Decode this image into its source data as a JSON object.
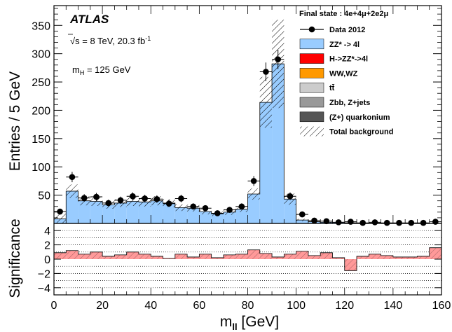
{
  "chart_data": [
    {
      "type": "stacked-histogram",
      "experiment": "ATLAS",
      "energy_lumi": "√s = 8 TeV, 20.3 fb",
      "energy_lumi_sup": "-1",
      "mass_label": "m",
      "mass_label_sub": "H",
      "mass_value": " = 125 GeV",
      "legend_title": "Final state : 4e+4μ+2e2μ",
      "ylabel": "Entries / 5 GeV",
      "xlim": [
        0,
        160
      ],
      "ylim": [
        0,
        385
      ],
      "yticks": [
        50,
        100,
        150,
        200,
        250,
        300,
        350
      ],
      "bin_edges": [
        0,
        5,
        10,
        15,
        20,
        25,
        30,
        35,
        40,
        45,
        50,
        55,
        60,
        65,
        70,
        75,
        80,
        85,
        90,
        95,
        100,
        105,
        110,
        115,
        120,
        125,
        130,
        135,
        140,
        145,
        150,
        155,
        160
      ],
      "series": [
        {
          "name": "ZZ* -> 4l",
          "color": "#99ccff",
          "values": [
            8,
            57,
            40,
            39,
            33,
            36,
            39,
            38,
            40,
            36,
            28,
            27,
            21,
            17,
            20,
            25,
            52,
            214,
            282,
            43,
            6,
            3,
            2,
            2,
            1,
            0.6,
            0.4,
            0.2,
            0.2,
            0.1,
            0.1,
            0.1
          ]
        },
        {
          "name": "H->ZZ*->4l",
          "color": "#ff0000",
          "values": [
            0,
            0,
            0,
            0,
            0,
            0,
            0,
            0,
            0,
            0,
            0,
            0,
            0,
            0,
            0,
            0,
            0,
            0,
            0,
            0,
            0,
            0,
            0,
            0,
            0,
            0,
            0,
            0,
            0,
            0,
            0,
            0
          ]
        },
        {
          "name": "WW,WZ",
          "color": "#ff9900",
          "values": [
            0,
            0,
            0,
            0,
            0,
            0,
            0,
            0,
            0,
            0,
            0,
            0,
            0,
            0,
            0,
            0,
            0,
            0,
            0,
            0,
            0,
            0,
            0,
            0,
            0,
            0,
            0,
            0,
            0,
            0,
            0,
            0
          ]
        },
        {
          "name": "tt̄",
          "color": "#cccccc",
          "values": [
            0,
            0,
            0,
            0,
            0,
            0,
            0,
            0,
            0,
            0,
            0,
            0,
            0,
            0,
            0,
            0,
            0,
            0,
            0,
            0,
            0,
            0,
            0,
            0,
            0,
            0,
            0,
            0,
            0,
            0,
            0,
            0
          ]
        },
        {
          "name": "Zbb, Z+jets",
          "color": "#999999",
          "values": [
            0,
            0,
            0,
            0,
            0,
            0,
            0,
            0,
            0,
            0,
            0,
            0,
            0,
            0,
            0,
            0,
            0,
            0,
            0,
            0,
            0,
            0,
            0,
            0,
            0,
            0,
            0,
            0,
            0,
            0,
            0,
            0
          ]
        },
        {
          "name": "(Z+) quarkonium",
          "color": "#555555",
          "values": [
            0,
            0,
            0,
            0,
            0,
            0,
            0,
            0,
            0,
            0,
            0,
            0,
            0,
            0,
            0,
            0,
            0,
            0,
            0,
            0,
            0,
            0,
            0,
            0,
            0,
            0,
            0,
            0,
            0,
            0,
            0,
            0
          ]
        }
      ],
      "total_background": {
        "name": "Total background",
        "values": [
          8,
          57,
          40,
          39,
          33,
          36,
          39,
          38,
          40,
          36,
          28,
          27,
          21,
          17,
          20,
          25,
          52,
          214,
          282,
          43,
          6,
          3,
          2,
          2,
          1,
          0.6,
          0.4,
          0.2,
          0.2,
          0.1,
          0.1,
          0.1
        ],
        "uncertainty": [
          10,
          12,
          8,
          8,
          7,
          7,
          8,
          8,
          8,
          7,
          6,
          6,
          5,
          4,
          5,
          5,
          10,
          45,
          78,
          10,
          2,
          1,
          1,
          1,
          0.5,
          0.3,
          0.2,
          0.1,
          0.1,
          0.1,
          0.1,
          0.1
        ]
      },
      "data": {
        "name": "Data 2012",
        "x": [
          2.5,
          7.5,
          12.5,
          17.5,
          22.5,
          27.5,
          32.5,
          37.5,
          42.5,
          47.5,
          52.5,
          57.5,
          62.5,
          67.5,
          72.5,
          77.5,
          82.5,
          87.5,
          92.5,
          97.5,
          102.5,
          107.5,
          112.5,
          117.5,
          122.5,
          127.5,
          132.5,
          137.5,
          142.5,
          147.5,
          152.5,
          157.5
        ],
        "y": [
          21,
          82,
          45,
          47,
          36,
          41,
          48,
          44,
          43,
          35,
          44,
          30,
          27,
          18,
          24,
          30,
          75,
          268,
          290,
          48,
          16,
          5,
          4,
          2,
          3,
          1,
          2,
          1,
          1,
          1,
          1,
          3
        ],
        "err": [
          4.6,
          9.1,
          6.7,
          6.9,
          6,
          6.4,
          6.9,
          6.6,
          6.6,
          5.9,
          6.6,
          5.5,
          5.2,
          4.2,
          4.9,
          5.5,
          8.7,
          16.4,
          17,
          6.9,
          4,
          2.2,
          2,
          1.4,
          1.7,
          1,
          1.4,
          1,
          1,
          1,
          1,
          1.7
        ]
      }
    },
    {
      "type": "histogram",
      "ylabel": "Significance",
      "xlabel": "m",
      "xlabel_sub": "ll",
      "xlabel_unit": " [GeV]",
      "xlim": [
        0,
        160
      ],
      "ylim": [
        -5,
        5
      ],
      "yticks": [
        -4,
        -2,
        0,
        2,
        4
      ],
      "xticks": [
        0,
        20,
        40,
        60,
        80,
        100,
        120,
        140,
        160
      ],
      "dotted_lines": [
        -4,
        -3,
        -2,
        -1,
        1,
        2,
        3,
        4
      ],
      "color": "#ff9999",
      "bin_edges": [
        0,
        5,
        10,
        15,
        20,
        25,
        30,
        35,
        40,
        45,
        50,
        55,
        60,
        65,
        70,
        75,
        80,
        85,
        90,
        95,
        100,
        105,
        110,
        115,
        120,
        125,
        130,
        135,
        140,
        145,
        150,
        155,
        160
      ],
      "values": [
        0.9,
        1.2,
        0.7,
        1.0,
        0.4,
        0.6,
        1.0,
        0.7,
        0.4,
        0.1,
        0.7,
        0.3,
        0.7,
        0.2,
        0.6,
        0.7,
        1.3,
        0.8,
        0.3,
        0.7,
        1.1,
        0.5,
        0.9,
        0.2,
        -1.6,
        0.4,
        0.7,
        0.5,
        0.3,
        0.3,
        0.4,
        1.6
      ]
    }
  ]
}
